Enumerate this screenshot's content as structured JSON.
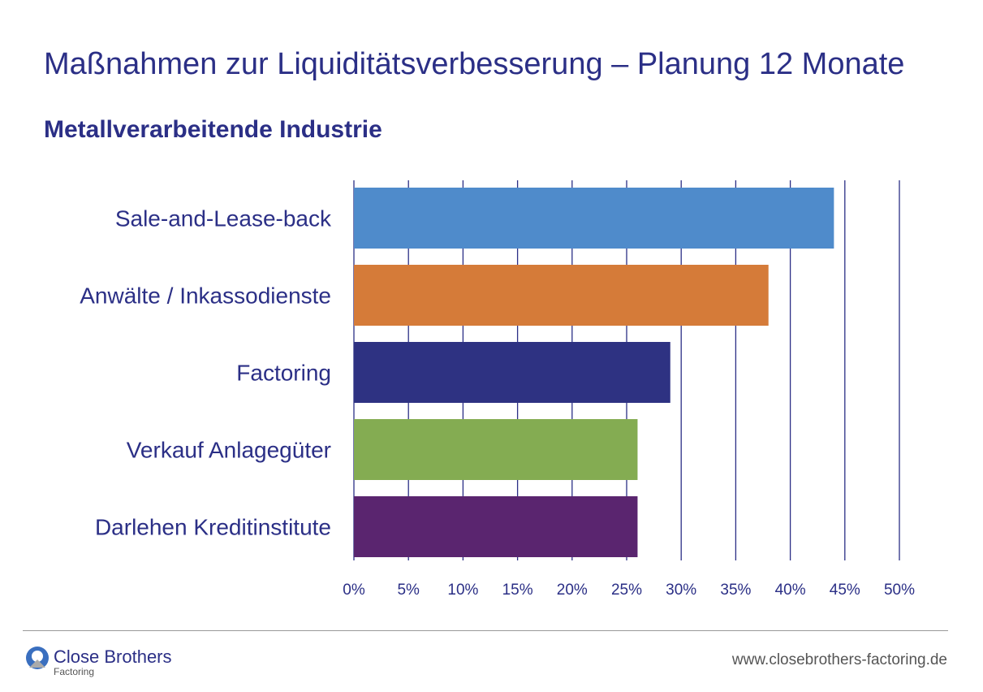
{
  "title": "Maßnahmen zur Liquiditätsverbesserung – Planung 12 Monate",
  "subtitle": "Metallverarbeitende Industrie",
  "chart_data": {
    "type": "bar",
    "orientation": "horizontal",
    "categories": [
      "Sale-and-Lease-back",
      "Anwälte / Inkassodienste",
      "Factoring",
      "Verkauf Anlagegüter",
      "Darlehen Kreditinstitute"
    ],
    "values": [
      44,
      38,
      29,
      26,
      26
    ],
    "colors": [
      "#4f8bcb",
      "#d57b39",
      "#2e3282",
      "#84ac52",
      "#5a256f"
    ],
    "xlim": [
      0,
      50
    ],
    "xticks": [
      "0%",
      "5%",
      "10%",
      "15%",
      "20%",
      "25%",
      "30%",
      "35%",
      "40%",
      "45%",
      "50%"
    ],
    "grid": true,
    "grid_color": "#2b2f86"
  },
  "footer": {
    "brand": "Close Brothers",
    "brand_sub": "Factoring",
    "url": "www.closebrothers-factoring.de"
  }
}
